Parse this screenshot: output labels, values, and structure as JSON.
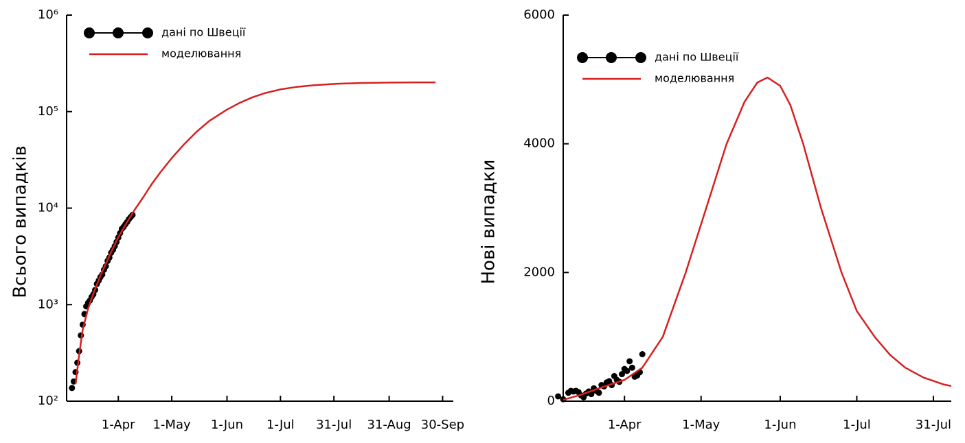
{
  "chart_data": [
    {
      "type": "line",
      "ylabel": "Всього випадків",
      "log_y": true,
      "legend": "upper left",
      "xlim": [
        "3-Mar",
        "6-Oct"
      ],
      "xticks": [
        "1-Apr",
        "1-May",
        "1-Jun",
        "1-Jul",
        "31-Jul",
        "31-Aug",
        "30-Sep"
      ],
      "ylim": [
        100,
        1000000
      ],
      "yticks": [
        {
          "value": 100,
          "label": "10²"
        },
        {
          "value": 1000,
          "label": "10³"
        },
        {
          "value": 10000,
          "label": "10⁴"
        },
        {
          "value": 100000,
          "label": "10⁵"
        },
        {
          "value": 1000000,
          "label": "10⁶"
        }
      ],
      "series": [
        {
          "name": "дані по Швеції",
          "color": "#000000",
          "marker": "o",
          "x": [
            "6-Mar",
            "7-Mar",
            "8-Mar",
            "9-Mar",
            "10-Mar",
            "11-Mar",
            "12-Mar",
            "13-Mar",
            "14-Mar",
            "15-Mar",
            "16-Mar",
            "17-Mar",
            "18-Mar",
            "19-Mar",
            "20-Mar",
            "21-Mar",
            "22-Mar",
            "23-Mar",
            "24-Mar",
            "25-Mar",
            "26-Mar",
            "27-Mar",
            "28-Mar",
            "29-Mar",
            "30-Mar",
            "31-Mar",
            "1-Apr",
            "2-Apr",
            "3-Apr",
            "4-Apr",
            "5-Apr",
            "6-Apr",
            "7-Apr",
            "8-Apr",
            "9-Apr"
          ],
          "values": [
            137,
            160,
            200,
            250,
            330,
            480,
            620,
            800,
            960,
            1040,
            1100,
            1200,
            1280,
            1420,
            1640,
            1770,
            1930,
            2050,
            2300,
            2500,
            2840,
            3070,
            3450,
            3700,
            4030,
            4450,
            4950,
            5500,
            6100,
            6400,
            6800,
            7200,
            7700,
            8100,
            8500
          ]
        },
        {
          "name": "моделювання",
          "color": "#d62020",
          "x": [
            "8-Mar",
            "10-Mar",
            "12-Mar",
            "15-Mar",
            "18-Mar",
            "22-Mar",
            "27-Mar",
            "1-Apr",
            "6-Apr",
            "10-Apr",
            "15-Apr",
            "20-Apr",
            "25-Apr",
            "1-May",
            "8-May",
            "15-May",
            "22-May",
            "1-Jun",
            "8-Jun",
            "15-Jun",
            "22-Jun",
            "1-Jul",
            "10-Jul",
            "20-Jul",
            "1-Aug",
            "15-Aug",
            "1-Sep",
            "15-Sep",
            "26-Sep"
          ],
          "values": [
            150,
            300,
            550,
            900,
            1300,
            2000,
            3200,
            5000,
            7200,
            9500,
            13000,
            18000,
            24000,
            33000,
            46000,
            62000,
            80000,
            105000,
            123000,
            140000,
            155000,
            170000,
            180000,
            188000,
            194000,
            198000,
            200000,
            201000,
            201000
          ]
        }
      ]
    },
    {
      "type": "line",
      "ylabel": "Нові випадки",
      "log_y": false,
      "legend": "upper left",
      "xlim": [
        "8-Mar",
        "7-Aug"
      ],
      "xticks": [
        "1-Apr",
        "1-May",
        "1-Jun",
        "1-Jul",
        "31-Jul"
      ],
      "ylim": [
        0,
        6000
      ],
      "yticks": [
        0,
        2000,
        4000,
        6000
      ],
      "series": [
        {
          "name": "дані по Швеції",
          "color": "#000000",
          "marker": "o",
          "x": [
            "6-Mar",
            "8-Mar",
            "10-Mar",
            "11-Mar",
            "12-Mar",
            "13-Mar",
            "14-Mar",
            "15-Mar",
            "16-Mar",
            "17-Mar",
            "18-Mar",
            "19-Mar",
            "20-Mar",
            "21-Mar",
            "22-Mar",
            "23-Mar",
            "24-Mar",
            "25-Mar",
            "26-Mar",
            "27-Mar",
            "28-Mar",
            "29-Mar",
            "30-Mar",
            "31-Mar",
            "1-Apr",
            "2-Apr",
            "3-Apr",
            "4-Apr",
            "5-Apr",
            "6-Apr",
            "7-Apr",
            "8-Apr"
          ],
          "values": [
            75,
            30,
            130,
            160,
            150,
            160,
            140,
            90,
            60,
            120,
            150,
            110,
            200,
            160,
            130,
            250,
            230,
            290,
            310,
            250,
            390,
            330,
            300,
            420,
            500,
            470,
            620,
            520,
            380,
            400,
            450,
            730
          ]
        },
        {
          "name": "моделювання",
          "color": "#d62020",
          "x": [
            "8-Mar",
            "15-Mar",
            "22-Mar",
            "1-Apr",
            "8-Apr",
            "16-Apr",
            "25-Apr",
            "3-May",
            "11-May",
            "18-May",
            "23-May",
            "27-May",
            "1-Jun",
            "5-Jun",
            "10-Jun",
            "17-Jun",
            "25-Jun",
            "1-Jul",
            "8-Jul",
            "14-Jul",
            "20-Jul",
            "27-Jul",
            "4-Aug",
            "7-Aug"
          ],
          "values": [
            20,
            100,
            200,
            330,
            520,
            1000,
            2000,
            3000,
            4000,
            4650,
            4950,
            5030,
            4900,
            4600,
            4000,
            3000,
            2000,
            1400,
            1000,
            720,
            520,
            370,
            260,
            235
          ]
        }
      ]
    }
  ]
}
